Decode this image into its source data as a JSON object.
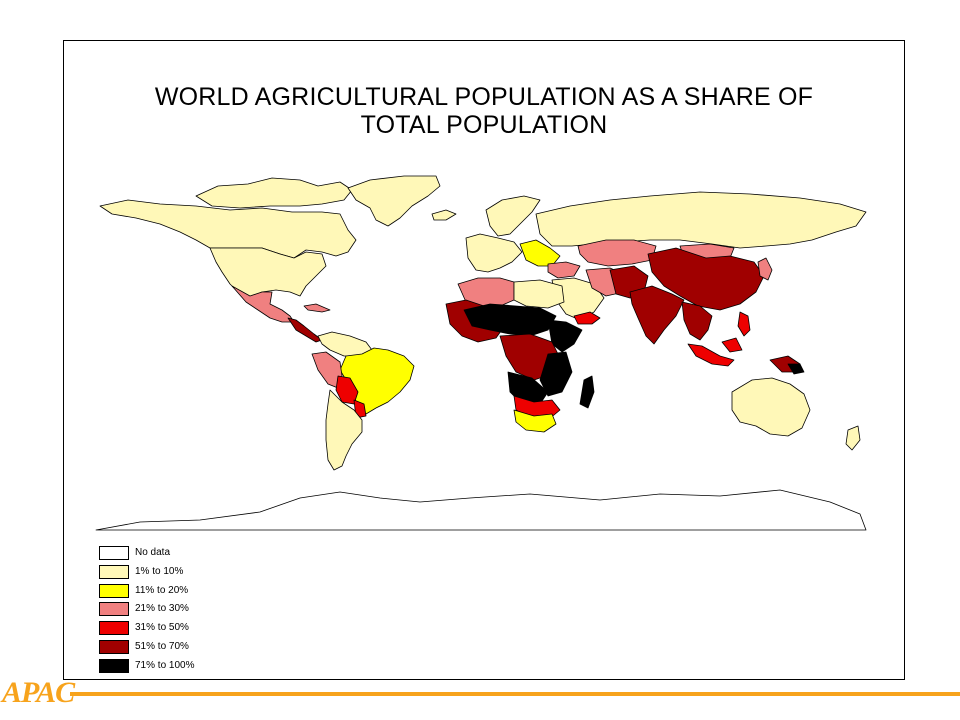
{
  "title": {
    "line1": "WORLD AGRICULTURAL POPULATION AS A SHARE OF",
    "line2": "TOTAL POPULATION"
  },
  "legend": [
    {
      "label": "No data",
      "color": "#ffffff"
    },
    {
      "label": "1% to 10%",
      "color": "#fff8b8"
    },
    {
      "label": "11% to 20%",
      "color": "#ffff00"
    },
    {
      "label": "21% to 30%",
      "color": "#f08080"
    },
    {
      "label": "31% to 50%",
      "color": "#ee0000"
    },
    {
      "label": "51% to 70%",
      "color": "#a00000"
    },
    {
      "label": "71% to 100%",
      "color": "#000000"
    }
  ],
  "colors": {
    "brand": "#f7a31c",
    "border": "#000000"
  },
  "brand": {
    "logo_text": "APAC"
  }
}
